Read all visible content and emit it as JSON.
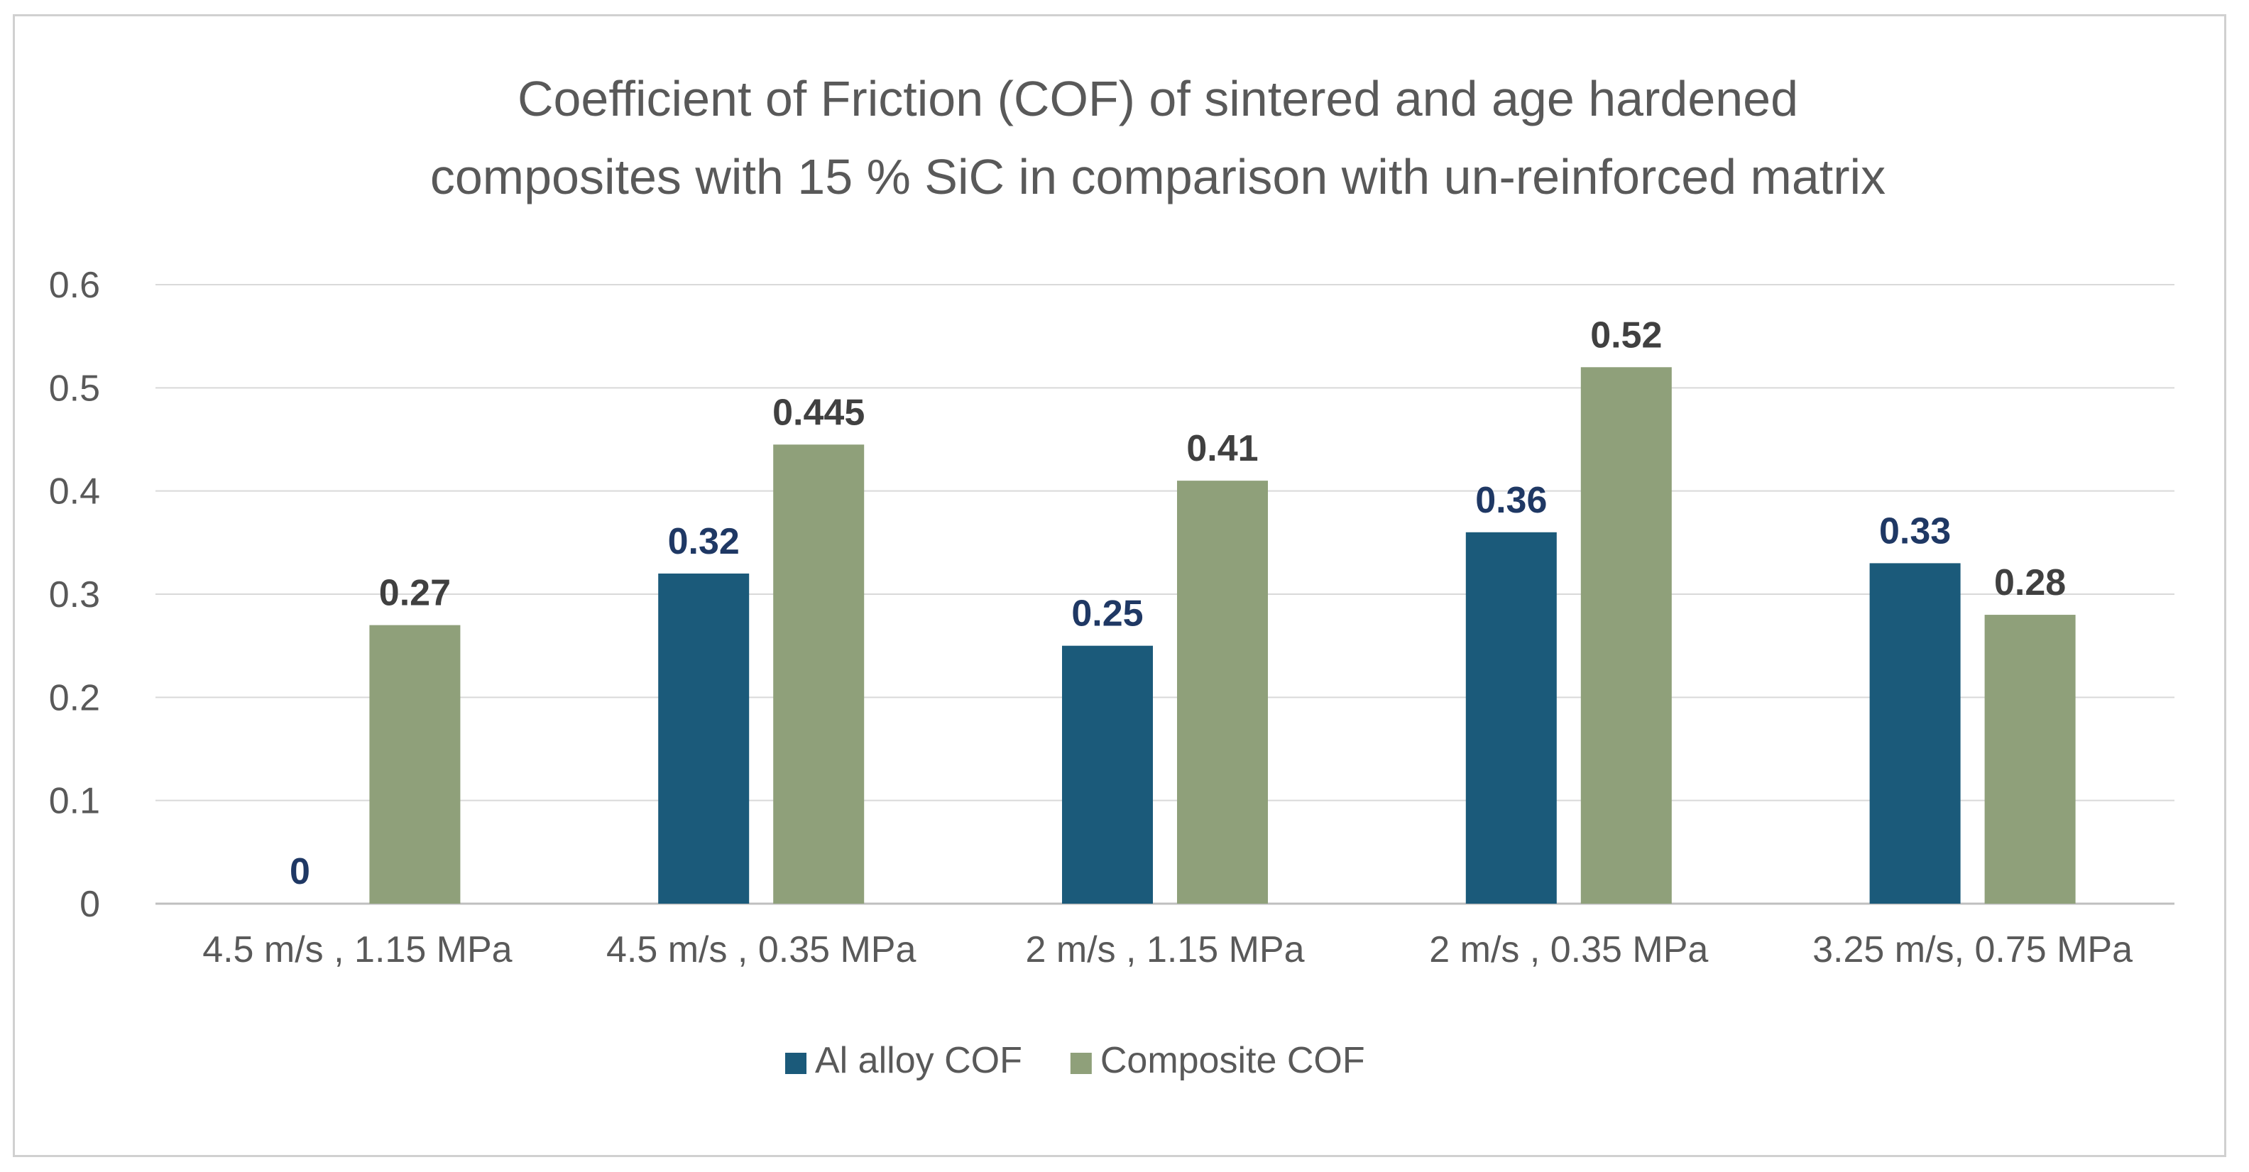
{
  "chart_data": {
    "type": "bar",
    "title": "Coefficient of Friction (COF) of sintered and age hardened composites with 15 % SiC in comparison with un-reinforced matrix",
    "title_lines": [
      "Coefficient of Friction (COF) of sintered and age hardened",
      "composites with 15 % SiC in comparison with un-reinforced matrix"
    ],
    "categories": [
      "4.5 m/s , 1.15 MPa",
      "4.5 m/s , 0.35 MPa",
      "2 m/s , 1.15 MPa",
      "2 m/s , 0.35 MPa",
      "3.25 m/s, 0.75 MPa"
    ],
    "series": [
      {
        "name": "Al alloy COF",
        "values": [
          0,
          0.32,
          0.25,
          0.36,
          0.33
        ],
        "labels": [
          "0",
          "0.32",
          "0.25",
          "0.36",
          "0.33"
        ],
        "color": "#1b5a7a",
        "label_color": "#1f3864"
      },
      {
        "name": "Composite COF",
        "values": [
          0.27,
          0.445,
          0.41,
          0.52,
          0.28
        ],
        "labels": [
          "0.27",
          "0.445",
          "0.41",
          "0.52",
          "0.28"
        ],
        "color": "#8fa07a",
        "label_color": "#404040"
      }
    ],
    "ylim": [
      0,
      0.6
    ],
    "yticks": [
      "0",
      "0.1",
      "0.2",
      "0.3",
      "0.4",
      "0.5",
      "0.6"
    ],
    "grid": true,
    "legend_position": "bottom",
    "xlabel": "",
    "ylabel": ""
  }
}
